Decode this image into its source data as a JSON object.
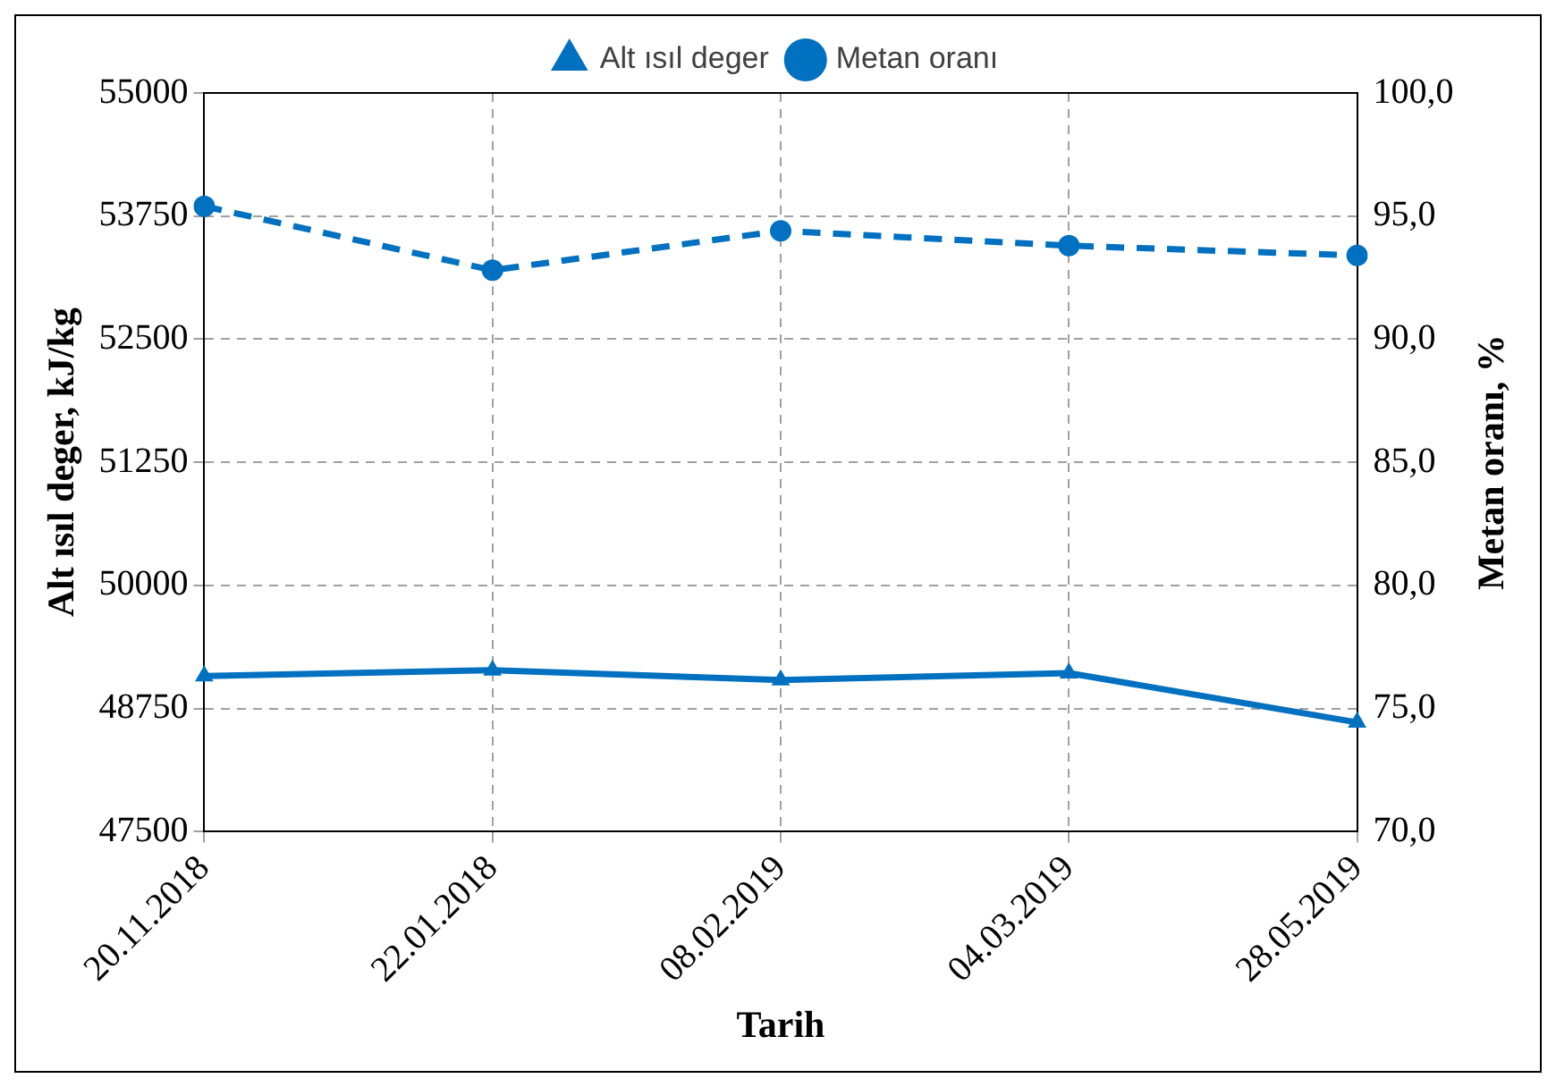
{
  "chart_data": {
    "type": "line",
    "xlabel": "Tarih",
    "ylabel": "Alt ısıl deger, kJ/kg",
    "y2label": "Metan oranı, %",
    "categories": [
      "20.11.2018",
      "22.01.2018",
      "08.02.2019",
      "04.03.2019",
      "28.05.2019"
    ],
    "series": [
      {
        "name": "Alt ısıl deger",
        "color": "#0070c0",
        "values": [
          49080,
          49140,
          49040,
          49110,
          48610
        ],
        "marker": "triangle",
        "line_style": "solid"
      },
      {
        "name": "Metan oranı",
        "color": "#0070c0",
        "values": [
          95.4,
          92.8,
          94.4,
          93.8,
          93.4
        ],
        "marker": "circle",
        "line_style": "dashed",
        "axis": "y2"
      }
    ],
    "ylim": [
      47500,
      55000
    ],
    "yticks": [
      47500,
      48750,
      50000,
      51250,
      52500,
      53750,
      55000
    ],
    "y2lim": [
      70,
      100
    ],
    "y2ticks": [
      {
        "value": 70,
        "label": "70,0"
      },
      {
        "value": 75,
        "label": "75,0"
      },
      {
        "value": 80,
        "label": "80,0"
      },
      {
        "value": 85,
        "label": "85,0"
      },
      {
        "value": 90,
        "label": "90,0"
      },
      {
        "value": 95,
        "label": "95,0"
      },
      {
        "value": 100,
        "label": "100,0"
      }
    ],
    "grid": true,
    "legend": "top"
  }
}
